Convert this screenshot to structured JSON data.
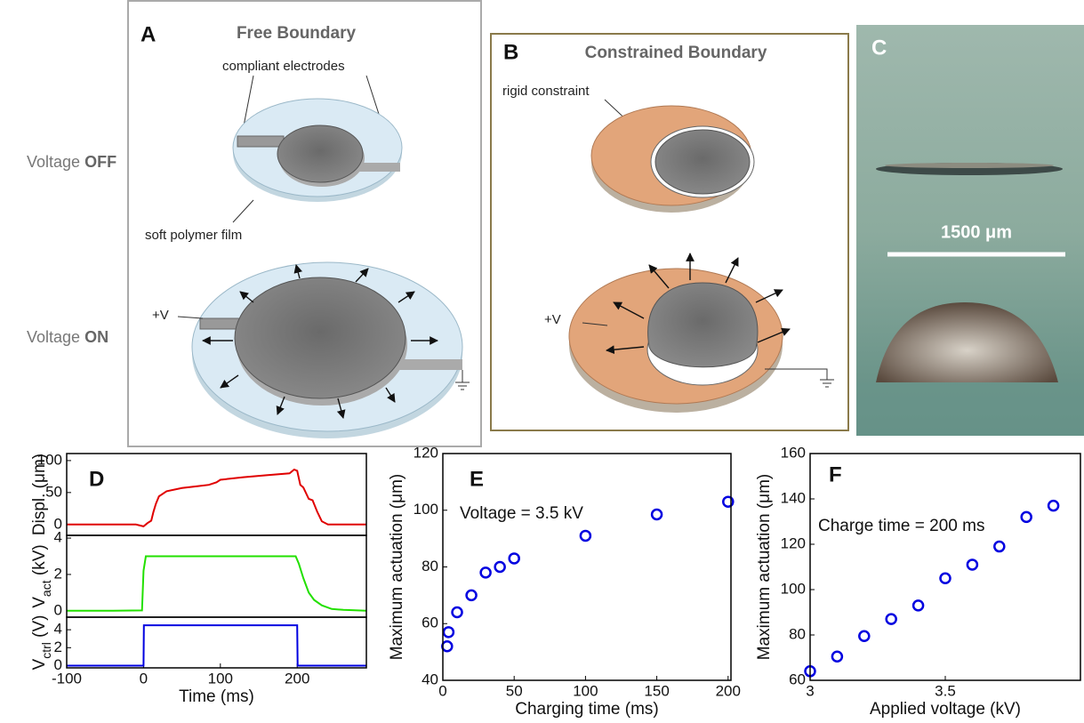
{
  "diagrams": {
    "row_labels": [
      {
        "text": "Voltage",
        "bold": "OFF"
      },
      {
        "text": "Voltage",
        "bold": "ON"
      }
    ],
    "A": {
      "label": "A",
      "title": "Free Boundary",
      "electrodes": "compliant electrodes",
      "film": "soft polymer film",
      "voltage": "+V"
    },
    "B": {
      "label": "B",
      "title": "Constrained Boundary",
      "constraint": "rigid constraint",
      "voltage": "+V"
    },
    "C": {
      "label": "C",
      "scale": "1500 μm"
    }
  },
  "chart_data": [
    {
      "type": "line",
      "label": "D",
      "ylabel": [
        {
          "text": "Displ. (μm)"
        }
      ],
      "color": "#e00000",
      "x": [
        -100,
        -50,
        -10,
        0,
        5,
        10,
        13,
        16,
        20,
        30,
        50,
        70,
        85,
        95,
        100,
        130,
        160,
        190,
        196,
        200,
        204,
        208,
        215,
        220,
        226,
        232,
        240,
        260,
        290
      ],
      "values": [
        0,
        0,
        0,
        -3,
        2,
        6,
        20,
        32,
        44,
        52,
        57,
        60,
        62,
        66,
        70,
        74,
        77,
        80,
        86,
        84,
        62,
        58,
        40,
        38,
        20,
        5,
        0,
        0,
        0
      ],
      "xlim": [
        -100,
        290
      ],
      "ylim": [
        -17,
        111
      ],
      "yticks": [
        0,
        50,
        100
      ]
    },
    {
      "type": "line",
      "ylabel": [
        {
          "text": "V"
        },
        {
          "text": "act",
          "sub": true
        },
        {
          "text": " (kV)"
        }
      ],
      "color": "#22e000",
      "x": [
        -100,
        -50,
        -2,
        0,
        3,
        50,
        100,
        150,
        198,
        202,
        208,
        215,
        222,
        232,
        245,
        260,
        290
      ],
      "values": [
        0,
        0,
        0.02,
        2.2,
        3.0,
        3.0,
        3.0,
        3.0,
        3.0,
        2.6,
        1.8,
        1.0,
        0.6,
        0.3,
        0.1,
        0.05,
        0
      ],
      "xlim": [
        -100,
        290
      ],
      "ylim": [
        -0.35,
        4.15
      ],
      "yticks": [
        0,
        2,
        4
      ]
    },
    {
      "type": "line",
      "ylabel": [
        {
          "text": "V"
        },
        {
          "text": "ctrl",
          "sub": true
        },
        {
          "text": " (V)"
        }
      ],
      "xlabel": "Time (ms)",
      "color": "#0000e0",
      "x": [
        -100,
        0,
        0.5,
        200,
        200.5,
        290
      ],
      "values": [
        0,
        0,
        4.5,
        4.5,
        0,
        0
      ],
      "xlim": [
        -100,
        290
      ],
      "ylim": [
        -0.25,
        5.4
      ],
      "yticks": [
        0,
        2,
        4
      ],
      "xticks": [
        -100,
        0,
        100,
        200
      ]
    },
    {
      "type": "scatter",
      "label": "E",
      "annotation": "Voltage = 3.5 kV",
      "xlabel": "Charging time (ms)",
      "ylabel": [
        {
          "text": "Maximum actuation (μm)"
        }
      ],
      "color": "#0000e0",
      "x": [
        3,
        4,
        10,
        20,
        30,
        40,
        50,
        100,
        150,
        200
      ],
      "values": [
        52,
        57,
        64,
        70,
        78,
        80,
        83,
        91,
        98.5,
        103
      ],
      "xlim": [
        0,
        202
      ],
      "ylim": [
        40,
        120
      ],
      "xticks": [
        0,
        50,
        100,
        150,
        200
      ],
      "yticks": [
        40,
        60,
        80,
        100,
        120
      ]
    },
    {
      "type": "scatter",
      "label": "F",
      "annotation": "Charge time = 200 ms",
      "xlabel": "Applied voltage (kV)",
      "ylabel": [
        {
          "text": "Maximum actuation (μm)"
        }
      ],
      "color": "#0000e0",
      "x": [
        3.0,
        3.1,
        3.2,
        3.3,
        3.4,
        3.5,
        3.6,
        3.7,
        3.8,
        3.9
      ],
      "values": [
        64,
        70.5,
        79.5,
        87,
        93,
        105,
        111,
        119,
        132,
        137
      ],
      "xlim": [
        3,
        4
      ],
      "ylim": [
        60,
        160
      ],
      "xticks": [
        3,
        3.5
      ],
      "yticks": [
        60,
        80,
        100,
        120,
        140,
        160
      ]
    }
  ]
}
